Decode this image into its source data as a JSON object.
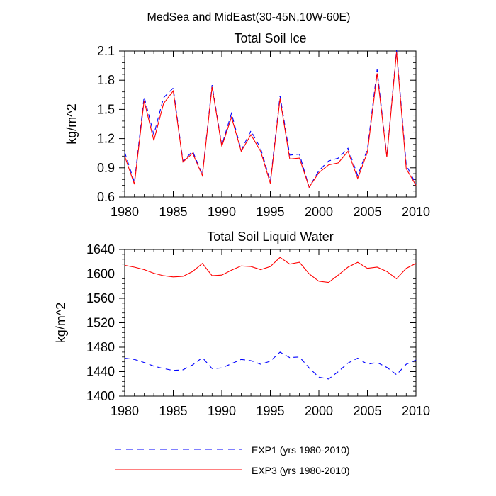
{
  "figure": {
    "title": "MedSea and MidEast(30-45N,10W-60E)"
  },
  "legend": {
    "entries": [
      {
        "label": "EXP1 (yrs 1980-2010)",
        "color": "#0000ff",
        "dash": "dashed"
      },
      {
        "label": "EXP3 (yrs 1980-2010)",
        "color": "#ff0000",
        "dash": "solid"
      }
    ]
  },
  "chart_data": [
    {
      "type": "line",
      "title": "Total Soil Ice",
      "xlabel": "",
      "ylabel": "kg/m^2",
      "xlim": [
        1980,
        2010
      ],
      "ylim": [
        0.6,
        2.1
      ],
      "xticks": [
        1980,
        1985,
        1990,
        1995,
        2000,
        2005,
        2010
      ],
      "yticks": [
        0.6,
        0.9,
        1.2,
        1.5,
        1.8,
        2.1
      ],
      "ytick_labels": [
        "0.6",
        "0.9",
        "1.2",
        "1.5",
        "1.8",
        "2.1"
      ],
      "x": [
        1980,
        1981,
        1982,
        1983,
        1984,
        1985,
        1986,
        1987,
        1988,
        1989,
        1990,
        1991,
        1992,
        1993,
        1994,
        1995,
        1996,
        1997,
        1998,
        1999,
        2000,
        2001,
        2002,
        2003,
        2004,
        2005,
        2006,
        2007,
        2008,
        2009,
        2010
      ],
      "series": [
        {
          "name": "EXP1 (yrs 1980-2010)",
          "color": "#0000ff",
          "dash": "dashed",
          "values": [
            1.06,
            0.75,
            1.63,
            1.24,
            1.62,
            1.72,
            0.97,
            1.07,
            0.83,
            1.75,
            1.13,
            1.46,
            1.08,
            1.28,
            1.1,
            0.76,
            1.64,
            1.03,
            1.04,
            0.7,
            0.87,
            0.97,
            1.0,
            1.1,
            0.82,
            1.09,
            1.91,
            1.02,
            2.11,
            0.93,
            0.73
          ]
        },
        {
          "name": "EXP3 (yrs 1980-2010)",
          "color": "#ff0000",
          "dash": "solid",
          "values": [
            1.02,
            0.73,
            1.59,
            1.18,
            1.56,
            1.69,
            0.96,
            1.05,
            0.82,
            1.73,
            1.12,
            1.42,
            1.07,
            1.24,
            1.07,
            0.74,
            1.61,
            0.99,
            1.0,
            0.7,
            0.85,
            0.93,
            0.95,
            1.07,
            0.79,
            1.06,
            1.87,
            1.01,
            2.09,
            0.89,
            0.72
          ]
        }
      ]
    },
    {
      "type": "line",
      "title": "Total Soil Liquid Water",
      "xlabel": "",
      "ylabel": "kg/m^2",
      "xlim": [
        1980,
        2010
      ],
      "ylim": [
        1400,
        1640
      ],
      "xticks": [
        1980,
        1985,
        1990,
        1995,
        2000,
        2005,
        2010
      ],
      "yticks": [
        1400,
        1440,
        1480,
        1520,
        1560,
        1600,
        1640
      ],
      "ytick_labels": [
        "1400",
        "1440",
        "1480",
        "1520",
        "1560",
        "1600",
        "1640"
      ],
      "x": [
        1980,
        1981,
        1982,
        1983,
        1984,
        1985,
        1986,
        1987,
        1988,
        1989,
        1990,
        1991,
        1992,
        1993,
        1994,
        1995,
        1996,
        1997,
        1998,
        1999,
        2000,
        2001,
        2002,
        2003,
        2004,
        2005,
        2006,
        2007,
        2008,
        2009,
        2010
      ],
      "series": [
        {
          "name": "EXP1 (yrs 1980-2010)",
          "color": "#0000ff",
          "dash": "dashed",
          "values": [
            1462,
            1460,
            1455,
            1449,
            1445,
            1442,
            1443,
            1451,
            1463,
            1445,
            1446,
            1453,
            1460,
            1458,
            1452,
            1457,
            1472,
            1463,
            1464,
            1446,
            1431,
            1428,
            1440,
            1454,
            1462,
            1452,
            1455,
            1447,
            1435,
            1452,
            1459
          ]
        },
        {
          "name": "EXP3 (yrs 1980-2010)",
          "color": "#ff0000",
          "dash": "solid",
          "values": [
            1614,
            1611,
            1607,
            1601,
            1597,
            1595,
            1596,
            1604,
            1617,
            1597,
            1598,
            1606,
            1613,
            1612,
            1607,
            1612,
            1627,
            1616,
            1619,
            1600,
            1588,
            1586,
            1598,
            1611,
            1619,
            1609,
            1611,
            1604,
            1592,
            1609,
            1617
          ]
        }
      ]
    }
  ]
}
